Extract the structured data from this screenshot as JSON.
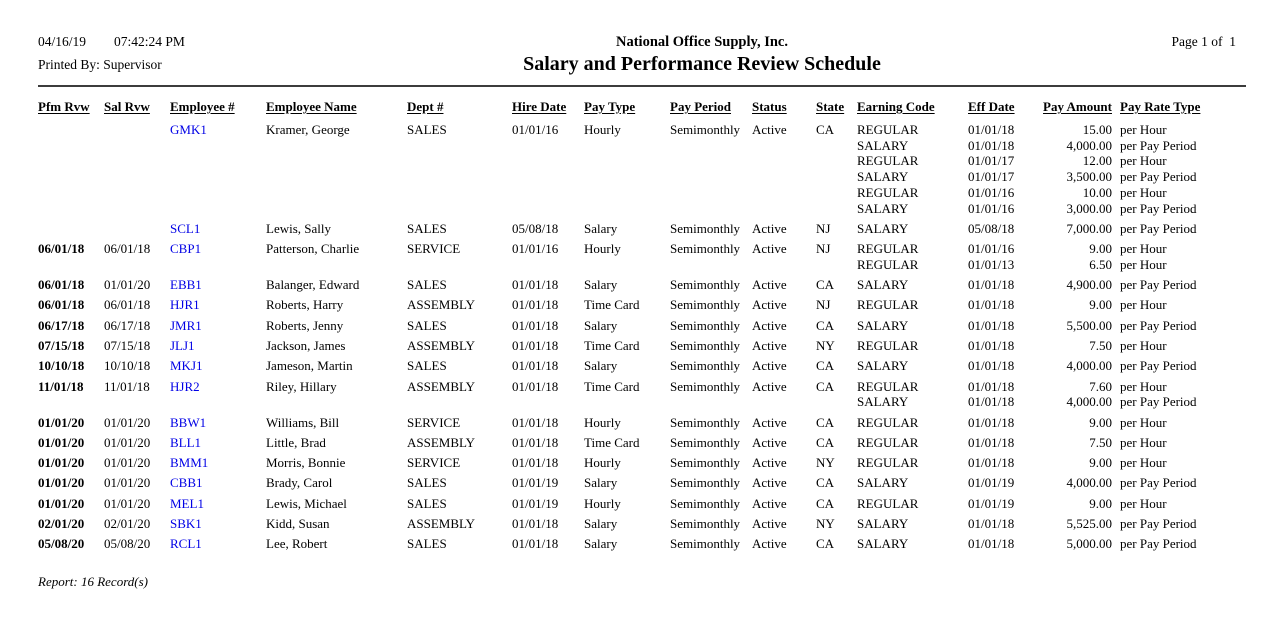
{
  "header": {
    "date": "04/16/19",
    "time": "07:42:24 PM",
    "printed_by": "Printed By: Supervisor",
    "company": "National Office Supply, Inc.",
    "title": "Salary and Performance Review Schedule",
    "page": "Page 1 of  1"
  },
  "table": {
    "columns": [
      "Pfm Rvw",
      "Sal Rvw",
      "Employee #",
      "Employee Name",
      "Dept #",
      "Hire Date",
      "Pay Type",
      "Pay Period",
      "Status",
      "State",
      "Earning Code",
      "Eff Date",
      "Pay Amount",
      "Pay Rate Type"
    ],
    "rows": [
      {
        "pfm_rvw": "",
        "sal_rvw": "",
        "employee_id": "GMK1",
        "employee_name": "Kramer, George",
        "dept": "SALES",
        "hire_date": "01/01/16",
        "pay_type": "Hourly",
        "pay_period": "Semimonthly",
        "status": "Active",
        "state": "CA",
        "earnings": [
          {
            "code": "REGULAR",
            "eff_date": "01/01/18",
            "amount": "15.00",
            "rate_type": "per Hour"
          },
          {
            "code": "SALARY",
            "eff_date": "01/01/18",
            "amount": "4,000.00",
            "rate_type": "per Pay Period"
          },
          {
            "code": "REGULAR",
            "eff_date": "01/01/17",
            "amount": "12.00",
            "rate_type": "per Hour"
          },
          {
            "code": "SALARY",
            "eff_date": "01/01/17",
            "amount": "3,500.00",
            "rate_type": "per Pay Period"
          },
          {
            "code": "REGULAR",
            "eff_date": "01/01/16",
            "amount": "10.00",
            "rate_type": "per Hour"
          },
          {
            "code": "SALARY",
            "eff_date": "01/01/16",
            "amount": "3,000.00",
            "rate_type": "per Pay Period"
          }
        ]
      },
      {
        "pfm_rvw": "",
        "sal_rvw": "",
        "employee_id": "SCL1",
        "employee_name": "Lewis, Sally",
        "dept": "SALES",
        "hire_date": "05/08/18",
        "pay_type": "Salary",
        "pay_period": "Semimonthly",
        "status": "Active",
        "state": "NJ",
        "earnings": [
          {
            "code": "SALARY",
            "eff_date": "05/08/18",
            "amount": "7,000.00",
            "rate_type": "per Pay Period"
          }
        ]
      },
      {
        "pfm_rvw": "06/01/18",
        "sal_rvw": "06/01/18",
        "employee_id": "CBP1",
        "employee_name": "Patterson, Charlie",
        "dept": "SERVICE",
        "hire_date": "01/01/16",
        "pay_type": "Hourly",
        "pay_period": "Semimonthly",
        "status": "Active",
        "state": "NJ",
        "earnings": [
          {
            "code": "REGULAR",
            "eff_date": "01/01/16",
            "amount": "9.00",
            "rate_type": "per Hour"
          },
          {
            "code": "REGULAR",
            "eff_date": "01/01/13",
            "amount": "6.50",
            "rate_type": "per Hour"
          }
        ]
      },
      {
        "pfm_rvw": "06/01/18",
        "sal_rvw": "01/01/20",
        "employee_id": "EBB1",
        "employee_name": "Balanger, Edward",
        "dept": "SALES",
        "hire_date": "01/01/18",
        "pay_type": "Salary",
        "pay_period": "Semimonthly",
        "status": "Active",
        "state": "CA",
        "earnings": [
          {
            "code": "SALARY",
            "eff_date": "01/01/18",
            "amount": "4,900.00",
            "rate_type": "per Pay Period"
          }
        ]
      },
      {
        "pfm_rvw": "06/01/18",
        "sal_rvw": "06/01/18",
        "employee_id": "HJR1",
        "employee_name": "Roberts, Harry",
        "dept": "ASSEMBLY",
        "hire_date": "01/01/18",
        "pay_type": "Time Card",
        "pay_period": "Semimonthly",
        "status": "Active",
        "state": "NJ",
        "earnings": [
          {
            "code": "REGULAR",
            "eff_date": "01/01/18",
            "amount": "9.00",
            "rate_type": "per Hour"
          }
        ]
      },
      {
        "pfm_rvw": "06/17/18",
        "sal_rvw": "06/17/18",
        "employee_id": "JMR1",
        "employee_name": "Roberts, Jenny",
        "dept": "SALES",
        "hire_date": "01/01/18",
        "pay_type": "Salary",
        "pay_period": "Semimonthly",
        "status": "Active",
        "state": "CA",
        "earnings": [
          {
            "code": "SALARY",
            "eff_date": "01/01/18",
            "amount": "5,500.00",
            "rate_type": "per Pay Period"
          }
        ]
      },
      {
        "pfm_rvw": "07/15/18",
        "sal_rvw": "07/15/18",
        "employee_id": "JLJ1",
        "employee_name": "Jackson, James",
        "dept": "ASSEMBLY",
        "hire_date": "01/01/18",
        "pay_type": "Time Card",
        "pay_period": "Semimonthly",
        "status": "Active",
        "state": "NY",
        "earnings": [
          {
            "code": "REGULAR",
            "eff_date": "01/01/18",
            "amount": "7.50",
            "rate_type": "per Hour"
          }
        ]
      },
      {
        "pfm_rvw": "10/10/18",
        "sal_rvw": "10/10/18",
        "employee_id": "MKJ1",
        "employee_name": "Jameson, Martin",
        "dept": "SALES",
        "hire_date": "01/01/18",
        "pay_type": "Salary",
        "pay_period": "Semimonthly",
        "status": "Active",
        "state": "CA",
        "earnings": [
          {
            "code": "SALARY",
            "eff_date": "01/01/18",
            "amount": "4,000.00",
            "rate_type": "per Pay Period"
          }
        ]
      },
      {
        "pfm_rvw": "11/01/18",
        "sal_rvw": "11/01/18",
        "employee_id": "HJR2",
        "employee_name": "Riley, Hillary",
        "dept": "ASSEMBLY",
        "hire_date": "01/01/18",
        "pay_type": "Time Card",
        "pay_period": "Semimonthly",
        "status": "Active",
        "state": "CA",
        "earnings": [
          {
            "code": "REGULAR",
            "eff_date": "01/01/18",
            "amount": "7.60",
            "rate_type": "per Hour"
          },
          {
            "code": "SALARY",
            "eff_date": "01/01/18",
            "amount": "4,000.00",
            "rate_type": "per Pay Period"
          }
        ]
      },
      {
        "pfm_rvw": "01/01/20",
        "sal_rvw": "01/01/20",
        "employee_id": "BBW1",
        "employee_name": "Williams, Bill",
        "dept": "SERVICE",
        "hire_date": "01/01/18",
        "pay_type": "Hourly",
        "pay_period": "Semimonthly",
        "status": "Active",
        "state": "CA",
        "earnings": [
          {
            "code": "REGULAR",
            "eff_date": "01/01/18",
            "amount": "9.00",
            "rate_type": "per Hour"
          }
        ]
      },
      {
        "pfm_rvw": "01/01/20",
        "sal_rvw": "01/01/20",
        "employee_id": "BLL1",
        "employee_name": "Little, Brad",
        "dept": "ASSEMBLY",
        "hire_date": "01/01/18",
        "pay_type": "Time Card",
        "pay_period": "Semimonthly",
        "status": "Active",
        "state": "CA",
        "earnings": [
          {
            "code": "REGULAR",
            "eff_date": "01/01/18",
            "amount": "7.50",
            "rate_type": "per Hour"
          }
        ]
      },
      {
        "pfm_rvw": "01/01/20",
        "sal_rvw": "01/01/20",
        "employee_id": "BMM1",
        "employee_name": "Morris, Bonnie",
        "dept": "SERVICE",
        "hire_date": "01/01/18",
        "pay_type": "Hourly",
        "pay_period": "Semimonthly",
        "status": "Active",
        "state": "NY",
        "earnings": [
          {
            "code": "REGULAR",
            "eff_date": "01/01/18",
            "amount": "9.00",
            "rate_type": "per Hour"
          }
        ]
      },
      {
        "pfm_rvw": "01/01/20",
        "sal_rvw": "01/01/20",
        "employee_id": "CBB1",
        "employee_name": "Brady, Carol",
        "dept": "SALES",
        "hire_date": "01/01/19",
        "pay_type": "Salary",
        "pay_period": "Semimonthly",
        "status": "Active",
        "state": "CA",
        "earnings": [
          {
            "code": "SALARY",
            "eff_date": "01/01/19",
            "amount": "4,000.00",
            "rate_type": "per Pay Period"
          }
        ]
      },
      {
        "pfm_rvw": "01/01/20",
        "sal_rvw": "01/01/20",
        "employee_id": "MEL1",
        "employee_name": "Lewis, Michael",
        "dept": "SALES",
        "hire_date": "01/01/19",
        "pay_type": "Hourly",
        "pay_period": "Semimonthly",
        "status": "Active",
        "state": "CA",
        "earnings": [
          {
            "code": "REGULAR",
            "eff_date": "01/01/19",
            "amount": "9.00",
            "rate_type": "per Hour"
          }
        ]
      },
      {
        "pfm_rvw": "02/01/20",
        "sal_rvw": "02/01/20",
        "employee_id": "SBK1",
        "employee_name": "Kidd, Susan",
        "dept": "ASSEMBLY",
        "hire_date": "01/01/18",
        "pay_type": "Salary",
        "pay_period": "Semimonthly",
        "status": "Active",
        "state": "NY",
        "earnings": [
          {
            "code": "SALARY",
            "eff_date": "01/01/18",
            "amount": "5,525.00",
            "rate_type": "per Pay Period"
          }
        ]
      },
      {
        "pfm_rvw": "05/08/20",
        "sal_rvw": "05/08/20",
        "employee_id": "RCL1",
        "employee_name": "Lee, Robert",
        "dept": "SALES",
        "hire_date": "01/01/18",
        "pay_type": "Salary",
        "pay_period": "Semimonthly",
        "status": "Active",
        "state": "CA",
        "earnings": [
          {
            "code": "SALARY",
            "eff_date": "01/01/18",
            "amount": "5,000.00",
            "rate_type": "per Pay Period"
          }
        ]
      }
    ]
  },
  "footer": {
    "summary": "Report: 16 Record(s)"
  },
  "colors": {
    "employee_link_blue": "#0000e6",
    "text": "#000000",
    "rule": "#3c3c3c",
    "background": "#ffffff"
  }
}
